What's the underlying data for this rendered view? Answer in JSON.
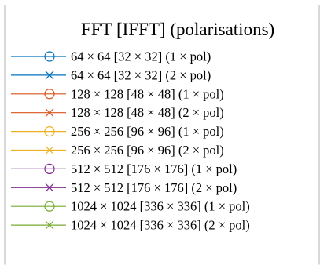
{
  "chart_data": {
    "type": "line",
    "legend": {
      "title": "FFT [IFFT] (polarisations)",
      "placement": "top-left",
      "entries": [
        {
          "label": "64 × 64 [32 × 32] (1 × pol)",
          "color": "#0072BD",
          "marker": "circle"
        },
        {
          "label": "64 × 64 [32 × 32] (2 × pol)",
          "color": "#0072BD",
          "marker": "x"
        },
        {
          "label": "128 × 128 [48 × 48] (1 × pol)",
          "color": "#D95319",
          "marker": "circle"
        },
        {
          "label": "128 × 128 [48 × 48] (2 × pol)",
          "color": "#D95319",
          "marker": "x"
        },
        {
          "label": "256 × 256 [96 × 96] (1 × pol)",
          "color": "#EDB120",
          "marker": "circle"
        },
        {
          "label": "256 × 256 [96 × 96] (2 × pol)",
          "color": "#EDB120",
          "marker": "x"
        },
        {
          "label": "512 × 512 [176 × 176] (1 × pol)",
          "color": "#7E2F8E",
          "marker": "circle"
        },
        {
          "label": "512 × 512 [176 × 176] (2 × pol)",
          "color": "#7E2F8E",
          "marker": "x"
        },
        {
          "label": "1024 × 1024 [336 × 336] (1 × pol)",
          "color": "#77AC30",
          "marker": "circle"
        },
        {
          "label": "1024 × 1024 [336 × 336] (2 × pol)",
          "color": "#77AC30",
          "marker": "x"
        }
      ]
    }
  }
}
